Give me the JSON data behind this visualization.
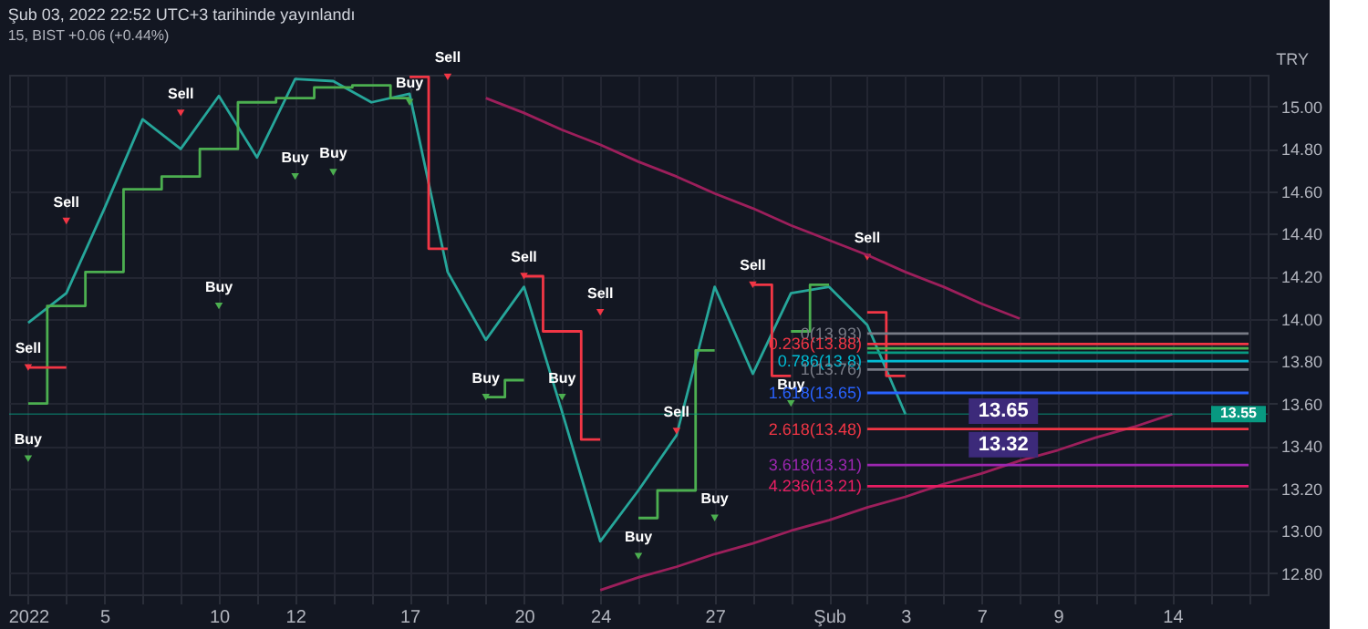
{
  "chart_data": {
    "type": "line",
    "title": "Şub 03, 2022 22:52 UTC+3 tarihinde yayınlandı",
    "subtitle": "15, BIST +0.06 (+0.44%)",
    "ylabel": "TRY",
    "categories": [
      "2022",
      null,
      "5",
      null,
      null,
      "10",
      null,
      "12",
      null,
      null,
      "17",
      null,
      null,
      "20",
      null,
      "24",
      null,
      null,
      "27",
      null,
      null,
      "Şub",
      null,
      "3",
      null,
      "7",
      null,
      "9",
      null,
      null,
      "14",
      null,
      null
    ],
    "ylim": [
      12.7,
      15.15
    ],
    "yticks": [
      {
        "value": 12.8,
        "label": "12.80"
      },
      {
        "value": 13.0,
        "label": "13.00"
      },
      {
        "value": 13.2,
        "label": "13.20"
      },
      {
        "value": 13.4,
        "label": "13.40"
      },
      {
        "value": 13.6,
        "label": "13.60"
      },
      {
        "value": 13.8,
        "label": "13.80"
      },
      {
        "value": 14.0,
        "label": "14.00"
      },
      {
        "value": 14.2,
        "label": "14.20"
      },
      {
        "value": 14.4,
        "label": "14.40"
      },
      {
        "value": 14.6,
        "label": "14.60"
      },
      {
        "value": 14.8,
        "label": "14.80"
      },
      {
        "value": 15.0,
        "label": "15.00"
      }
    ],
    "grid": true,
    "line_style": "solid",
    "series": [
      {
        "color": "#26a69a",
        "values": [
          13.98,
          14.12,
          14.52,
          14.94,
          14.8,
          15.05,
          14.76,
          15.13,
          15.12,
          15.02,
          15.06,
          14.22,
          13.9,
          14.15,
          13.56,
          12.95,
          13.19,
          13.45,
          14.15,
          13.74,
          14.12,
          14.15,
          13.97,
          13.55,
          null,
          null,
          null,
          null,
          null,
          null,
          null,
          null,
          null
        ]
      },
      {
        "type": "step",
        "color": "#4caf50",
        "values": [
          13.6,
          14.06,
          14.22,
          14.61,
          14.67,
          14.8,
          15.02,
          15.04,
          15.09,
          15.1,
          15.04,
          null,
          13.63,
          13.71,
          null,
          null,
          13.06,
          13.19,
          13.85,
          null,
          13.94,
          14.16,
          null,
          null,
          null,
          null,
          null,
          null,
          null,
          null,
          null,
          null,
          null
        ]
      },
      {
        "type": "step",
        "color": "#f23645",
        "values": [
          13.77,
          13.77,
          null,
          null,
          null,
          null,
          null,
          null,
          null,
          null,
          15.14,
          14.33,
          null,
          14.2,
          13.94,
          13.43,
          null,
          null,
          null,
          14.16,
          13.73,
          null,
          14.03,
          13.73,
          null,
          null,
          null,
          null,
          null,
          null,
          null,
          null,
          null
        ]
      },
      {
        "type": "scatter",
        "color": "#f23645",
        "values": [
          13.77,
          14.46,
          null,
          null,
          14.97,
          null,
          null,
          null,
          null,
          null,
          null,
          15.14,
          null,
          14.2,
          null,
          14.03,
          null,
          13.47,
          null,
          14.16,
          null,
          null,
          14.29,
          null,
          null,
          null,
          null,
          null,
          null,
          null,
          null,
          null,
          null
        ],
        "value_labels": [
          "Sell",
          "Sell",
          null,
          null,
          "Sell",
          null,
          null,
          null,
          null,
          null,
          null,
          "Sell",
          null,
          "Sell",
          null,
          "Sell",
          null,
          "Sell",
          null,
          "Sell",
          null,
          null,
          "Sell",
          null,
          null,
          null,
          null,
          null,
          null,
          null,
          null,
          null,
          null
        ]
      },
      {
        "type": "scatter",
        "color": "#4caf50",
        "values": [
          13.34,
          null,
          null,
          null,
          null,
          14.06,
          null,
          14.67,
          14.69,
          null,
          15.02,
          null,
          13.63,
          null,
          13.63,
          null,
          12.88,
          null,
          13.06,
          null,
          13.6,
          null,
          null,
          null,
          null,
          null,
          null,
          null,
          null,
          null,
          null,
          null,
          null
        ],
        "value_labels": [
          "Buy",
          null,
          null,
          null,
          null,
          "Buy",
          null,
          "Buy",
          "Buy",
          null,
          "Buy",
          null,
          "Buy",
          null,
          "Buy",
          null,
          "Buy",
          null,
          "Buy",
          null,
          "Buy",
          null,
          null,
          null,
          null,
          null,
          null,
          null,
          null,
          null,
          null,
          null,
          null
        ]
      },
      {
        "type": "line",
        "color": "#9c1f5b",
        "values": [
          null,
          null,
          null,
          null,
          null,
          null,
          null,
          null,
          null,
          null,
          null,
          null,
          15.04,
          14.97,
          14.89,
          14.82,
          14.74,
          14.67,
          14.59,
          14.52,
          14.44,
          14.37,
          14.3,
          14.22,
          14.15,
          14.07,
          14.0,
          null,
          null,
          null,
          null,
          null,
          null
        ]
      },
      {
        "type": "line",
        "color": "#9c1f5b",
        "values": [
          null,
          null,
          null,
          null,
          null,
          null,
          null,
          null,
          null,
          null,
          null,
          null,
          null,
          null,
          null,
          12.72,
          12.78,
          12.83,
          12.89,
          12.94,
          13.0,
          13.05,
          13.11,
          13.16,
          13.22,
          13.27,
          13.33,
          13.38,
          13.44,
          13.49,
          13.55,
          null,
          null
        ]
      },
      {
        "type": "line",
        "color": "#787b86",
        "values": [
          null,
          null,
          null,
          null,
          null,
          null,
          null,
          null,
          null,
          null,
          null,
          null,
          null,
          null,
          null,
          null,
          null,
          null,
          null,
          null,
          null,
          null,
          13.93,
          13.93,
          13.93,
          13.93,
          13.93,
          13.93,
          13.93,
          13.93,
          13.93,
          13.93,
          13.93
        ],
        "value_labels": [
          null,
          null,
          null,
          null,
          null,
          null,
          null,
          null,
          null,
          null,
          null,
          null,
          null,
          null,
          null,
          null,
          null,
          null,
          null,
          null,
          null,
          null,
          "0(13.93)",
          null,
          null,
          null,
          null,
          null,
          null,
          null,
          null,
          null,
          null
        ]
      },
      {
        "type": "line",
        "color": "#f23645",
        "values": [
          null,
          null,
          null,
          null,
          null,
          null,
          null,
          null,
          null,
          null,
          null,
          null,
          null,
          null,
          null,
          null,
          null,
          null,
          null,
          null,
          null,
          null,
          13.88,
          13.88,
          13.88,
          13.88,
          13.88,
          13.88,
          13.88,
          13.88,
          13.88,
          13.88,
          13.88
        ],
        "value_labels": [
          null,
          null,
          null,
          null,
          null,
          null,
          null,
          null,
          null,
          null,
          null,
          null,
          null,
          null,
          null,
          null,
          null,
          null,
          null,
          null,
          null,
          null,
          "0.236(13.88)",
          null,
          null,
          null,
          null,
          null,
          null,
          null,
          null,
          null,
          null
        ]
      },
      {
        "type": "line",
        "color": "#4caf50",
        "values": [
          null,
          null,
          null,
          null,
          null,
          null,
          null,
          null,
          null,
          null,
          null,
          null,
          null,
          null,
          null,
          null,
          null,
          null,
          null,
          null,
          null,
          null,
          13.86,
          13.86,
          13.86,
          13.86,
          13.86,
          13.86,
          13.86,
          13.86,
          13.86,
          13.86,
          13.86
        ]
      },
      {
        "type": "line",
        "color": "#089981",
        "values": [
          null,
          null,
          null,
          null,
          null,
          null,
          null,
          null,
          null,
          null,
          null,
          null,
          null,
          null,
          null,
          null,
          null,
          null,
          null,
          null,
          null,
          null,
          13.84,
          13.84,
          13.84,
          13.84,
          13.84,
          13.84,
          13.84,
          13.84,
          13.84,
          13.84,
          13.84
        ]
      },
      {
        "type": "line",
        "color": "#00bcd4",
        "values": [
          null,
          null,
          null,
          null,
          null,
          null,
          null,
          null,
          null,
          null,
          null,
          null,
          null,
          null,
          null,
          null,
          null,
          null,
          null,
          null,
          null,
          null,
          13.8,
          13.8,
          13.8,
          13.8,
          13.8,
          13.8,
          13.8,
          13.8,
          13.8,
          13.8,
          13.8
        ],
        "value_labels": [
          null,
          null,
          null,
          null,
          null,
          null,
          null,
          null,
          null,
          null,
          null,
          null,
          null,
          null,
          null,
          null,
          null,
          null,
          null,
          null,
          null,
          null,
          "0.786(13.8)",
          null,
          null,
          null,
          null,
          null,
          null,
          null,
          null,
          null,
          null
        ]
      },
      {
        "type": "line",
        "color": "#787b86",
        "values": [
          null,
          null,
          null,
          null,
          null,
          null,
          null,
          null,
          null,
          null,
          null,
          null,
          null,
          null,
          null,
          null,
          null,
          null,
          null,
          null,
          null,
          null,
          13.76,
          13.76,
          13.76,
          13.76,
          13.76,
          13.76,
          13.76,
          13.76,
          13.76,
          13.76,
          13.76
        ],
        "value_labels": [
          null,
          null,
          null,
          null,
          null,
          null,
          null,
          null,
          null,
          null,
          null,
          null,
          null,
          null,
          null,
          null,
          null,
          null,
          null,
          null,
          null,
          null,
          "1(13.76)",
          null,
          null,
          null,
          null,
          null,
          null,
          null,
          null,
          null,
          null
        ]
      },
      {
        "type": "line",
        "color": "#2962ff",
        "values": [
          null,
          null,
          null,
          null,
          null,
          null,
          null,
          null,
          null,
          null,
          null,
          null,
          null,
          null,
          null,
          null,
          null,
          null,
          null,
          null,
          null,
          null,
          13.65,
          13.65,
          13.65,
          13.65,
          13.65,
          13.65,
          13.65,
          13.65,
          13.65,
          13.65,
          13.65
        ],
        "value_labels": [
          null,
          null,
          null,
          null,
          null,
          null,
          null,
          null,
          null,
          null,
          null,
          null,
          null,
          null,
          null,
          null,
          null,
          null,
          null,
          null,
          null,
          null,
          "1.618(13.65)",
          null,
          null,
          null,
          null,
          null,
          null,
          null,
          null,
          null,
          null
        ]
      },
      {
        "type": "line",
        "color": "#f23645",
        "values": [
          null,
          null,
          null,
          null,
          null,
          null,
          null,
          null,
          null,
          null,
          null,
          null,
          null,
          null,
          null,
          null,
          null,
          null,
          null,
          null,
          null,
          null,
          13.48,
          13.48,
          13.48,
          13.48,
          13.48,
          13.48,
          13.48,
          13.48,
          13.48,
          13.48,
          13.48
        ],
        "value_labels": [
          null,
          null,
          null,
          null,
          null,
          null,
          null,
          null,
          null,
          null,
          null,
          null,
          null,
          null,
          null,
          null,
          null,
          null,
          null,
          null,
          null,
          null,
          "2.618(13.48)",
          null,
          null,
          null,
          null,
          null,
          null,
          null,
          null,
          null,
          null
        ]
      },
      {
        "type": "line",
        "color": "#9c27b0",
        "values": [
          null,
          null,
          null,
          null,
          null,
          null,
          null,
          null,
          null,
          null,
          null,
          null,
          null,
          null,
          null,
          null,
          null,
          null,
          null,
          null,
          null,
          null,
          13.31,
          13.31,
          13.31,
          13.31,
          13.31,
          13.31,
          13.31,
          13.31,
          13.31,
          13.31,
          13.31
        ],
        "value_labels": [
          null,
          null,
          null,
          null,
          null,
          null,
          null,
          null,
          null,
          null,
          null,
          null,
          null,
          null,
          null,
          null,
          null,
          null,
          null,
          null,
          null,
          null,
          "3.618(13.31)",
          null,
          null,
          null,
          null,
          null,
          null,
          null,
          null,
          null,
          null
        ]
      },
      {
        "type": "line",
        "color": "#e91e63",
        "values": [
          null,
          null,
          null,
          null,
          null,
          null,
          null,
          null,
          null,
          null,
          null,
          null,
          null,
          null,
          null,
          null,
          null,
          null,
          null,
          null,
          null,
          null,
          13.21,
          13.21,
          13.21,
          13.21,
          13.21,
          13.21,
          13.21,
          13.21,
          13.21,
          13.21,
          13.21
        ],
        "value_labels": [
          null,
          null,
          null,
          null,
          null,
          null,
          null,
          null,
          null,
          null,
          null,
          null,
          null,
          null,
          null,
          null,
          null,
          null,
          null,
          null,
          null,
          null,
          "4.236(13.21)",
          null,
          null,
          null,
          null,
          null,
          null,
          null,
          null,
          null,
          null
        ]
      }
    ],
    "ref_lines": [
      {
        "axis": "y",
        "value": 13.55,
        "label": "13.55",
        "color": "#089981"
      }
    ],
    "annotations": [
      {
        "text": "13.65",
        "y": 13.65
      },
      {
        "text": "13.32",
        "y": 13.32
      }
    ]
  }
}
